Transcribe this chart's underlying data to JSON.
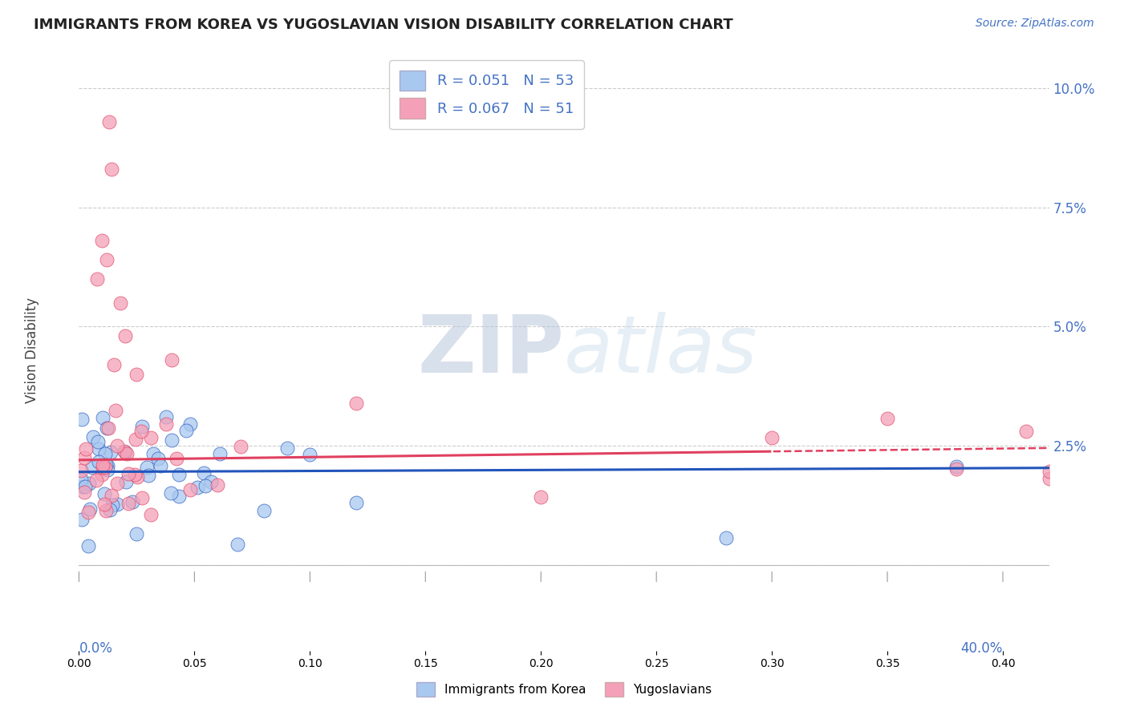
{
  "title": "IMMIGRANTS FROM KOREA VS YUGOSLAVIAN VISION DISABILITY CORRELATION CHART",
  "source": "Source: ZipAtlas.com",
  "ylabel": "Vision Disability",
  "series1_color": "#a8c8f0",
  "series2_color": "#f4a0b8",
  "trend1_color": "#2255bb",
  "trend2_color": "#e04060",
  "background_color": "#ffffff",
  "grid_color": "#cccccc",
  "watermark_color": "#d0dff0",
  "xlim": [
    0.0,
    0.42
  ],
  "ylim": [
    -0.018,
    0.108
  ],
  "yticks": [
    0.0,
    0.025,
    0.05,
    0.075,
    0.1
  ],
  "korea_trend_intercept": 0.0195,
  "korea_trend_slope": 0.002,
  "yugo_trend_intercept": 0.022,
  "yugo_trend_slope": 0.006
}
